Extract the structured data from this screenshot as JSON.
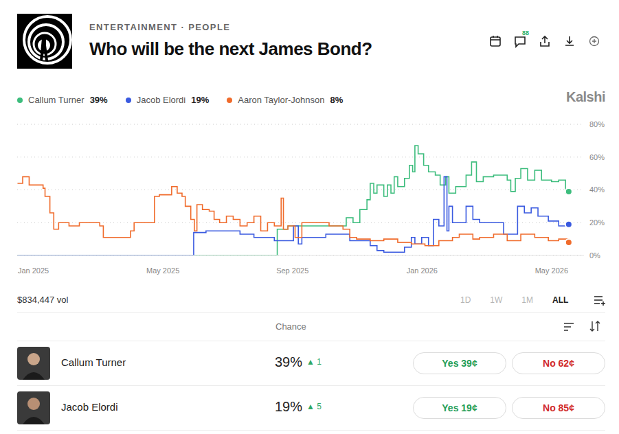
{
  "header": {
    "category": "ENTERTAINMENT · PEOPLE",
    "comments": "88",
    "brand": "Kalshi"
  },
  "chart_data": {
    "type": "line",
    "title": "Who will be the next James Bond?",
    "legend": "top",
    "grid": true,
    "line_style": "step",
    "marker": "last",
    "xlim": [
      -0.5,
      17
    ],
    "xticks": [
      {
        "value": 0,
        "label": "Jan 2025"
      },
      {
        "value": 4,
        "label": "May 2025"
      },
      {
        "value": 8,
        "label": "Sep 2025"
      },
      {
        "value": 12,
        "label": "Jan 2026"
      },
      {
        "value": 16,
        "label": "May 2026"
      }
    ],
    "ylim": [
      0,
      80
    ],
    "yticks": [
      {
        "value": 0,
        "label": "0%"
      },
      {
        "value": 20,
        "label": "20%"
      },
      {
        "value": 40,
        "label": "40%"
      },
      {
        "value": 60,
        "label": "60%"
      },
      {
        "value": 80,
        "label": "80%"
      }
    ],
    "series": [
      {
        "name": "Callum Turner",
        "color": "#3dbd7d",
        "current": "39%",
        "x": [
          -0.49,
          7.53,
          7.86,
          9.66,
          9.87,
          10.08,
          10.3,
          10.4,
          10.51,
          10.61,
          10.82,
          10.93,
          11.04,
          11.14,
          11.25,
          11.46,
          11.61,
          11.71,
          11.78,
          11.88,
          12.05,
          12.2,
          12.41,
          12.56,
          12.73,
          12.83,
          13.04,
          13.36,
          13.53,
          13.68,
          13.89,
          14.21,
          14.63,
          14.74,
          14.88,
          15.05,
          15.26,
          15.48,
          15.69,
          16.0,
          16.22,
          16.43,
          16.53
        ],
        "values": [
          0,
          16,
          18,
          23,
          20,
          28,
          34,
          44,
          38,
          43,
          36,
          43,
          38,
          48,
          42,
          47,
          55,
          51,
          67,
          62,
          55,
          51,
          49,
          43,
          48,
          38,
          42,
          49,
          57,
          45,
          48,
          49,
          46,
          39,
          47,
          53,
          46,
          52,
          46,
          45,
          46,
          38,
          39
        ]
      },
      {
        "name": "Jacob Elordi",
        "color": "#3a5ae0",
        "current": "19%",
        "x": [
          -0.49,
          4.95,
          5.33,
          6.38,
          6.81,
          7.44,
          8.03,
          8.18,
          8.29,
          9.03,
          9.77,
          10.4,
          10.61,
          10.82,
          11.46,
          11.67,
          11.78,
          11.99,
          12.2,
          12.35,
          12.52,
          12.68,
          12.77,
          12.83,
          12.94,
          13.36,
          13.57,
          13.78,
          14.52,
          14.95,
          15.16,
          15.37,
          15.58,
          15.9,
          16.22,
          16.53
        ],
        "values": [
          0,
          14,
          15,
          13,
          11,
          9,
          18,
          7,
          11,
          13,
          9,
          6,
          3,
          2,
          5,
          11,
          7,
          11,
          6,
          22,
          18,
          48,
          15,
          30,
          20,
          30,
          22,
          20,
          13,
          30,
          26,
          29,
          24,
          21,
          18,
          19
        ]
      },
      {
        "name": "Aaron Taylor-Johnson",
        "color": "#f06b2b",
        "current": "8%",
        "x": [
          -0.49,
          -0.33,
          -0.13,
          0.3,
          0.36,
          0.51,
          0.63,
          0.78,
          1.1,
          1.42,
          2.05,
          2.16,
          3.0,
          3.11,
          3.74,
          3.89,
          4.27,
          4.44,
          4.59,
          4.69,
          4.86,
          4.97,
          5.05,
          5.22,
          5.43,
          5.58,
          5.75,
          5.96,
          6.17,
          6.38,
          6.6,
          6.81,
          7.02,
          7.23,
          7.44,
          7.65,
          7.72,
          7.86,
          8.08,
          8.29,
          8.71,
          9.13,
          9.56,
          9.77,
          9.98,
          10.4,
          10.82,
          11.25,
          11.67,
          12.09,
          12.52,
          12.94,
          13.15,
          13.57,
          13.78,
          14.21,
          14.63,
          15.05,
          15.48,
          15.9,
          16.22,
          16.53
        ],
        "values": [
          44,
          48,
          43,
          41,
          36,
          26,
          16,
          20,
          18,
          20,
          18,
          11,
          15,
          20,
          36,
          37,
          42,
          38,
          36,
          30,
          22,
          15,
          31,
          28,
          27,
          22,
          20,
          24,
          22,
          18,
          20,
          24,
          15,
          20,
          18,
          35,
          16,
          18,
          11,
          20,
          20,
          18,
          16,
          11,
          10,
          9,
          10,
          8,
          7,
          6,
          9,
          11,
          13,
          10,
          11,
          13,
          9,
          13,
          11,
          9,
          10,
          8
        ]
      }
    ]
  },
  "footer": {
    "volume": "$834,447 vol",
    "ranges": [
      "1D",
      "1W",
      "1M",
      "ALL"
    ]
  },
  "table": {
    "header": "Chance",
    "rows": [
      {
        "name": "Callum Turner",
        "chance": "39%",
        "change": "▲ 1",
        "yes": "Yes 39¢",
        "no": "No 62¢"
      },
      {
        "name": "Jacob Elordi",
        "chance": "19%",
        "change": "▲ 5",
        "yes": "Yes 19¢",
        "no": "No 85¢"
      }
    ]
  }
}
